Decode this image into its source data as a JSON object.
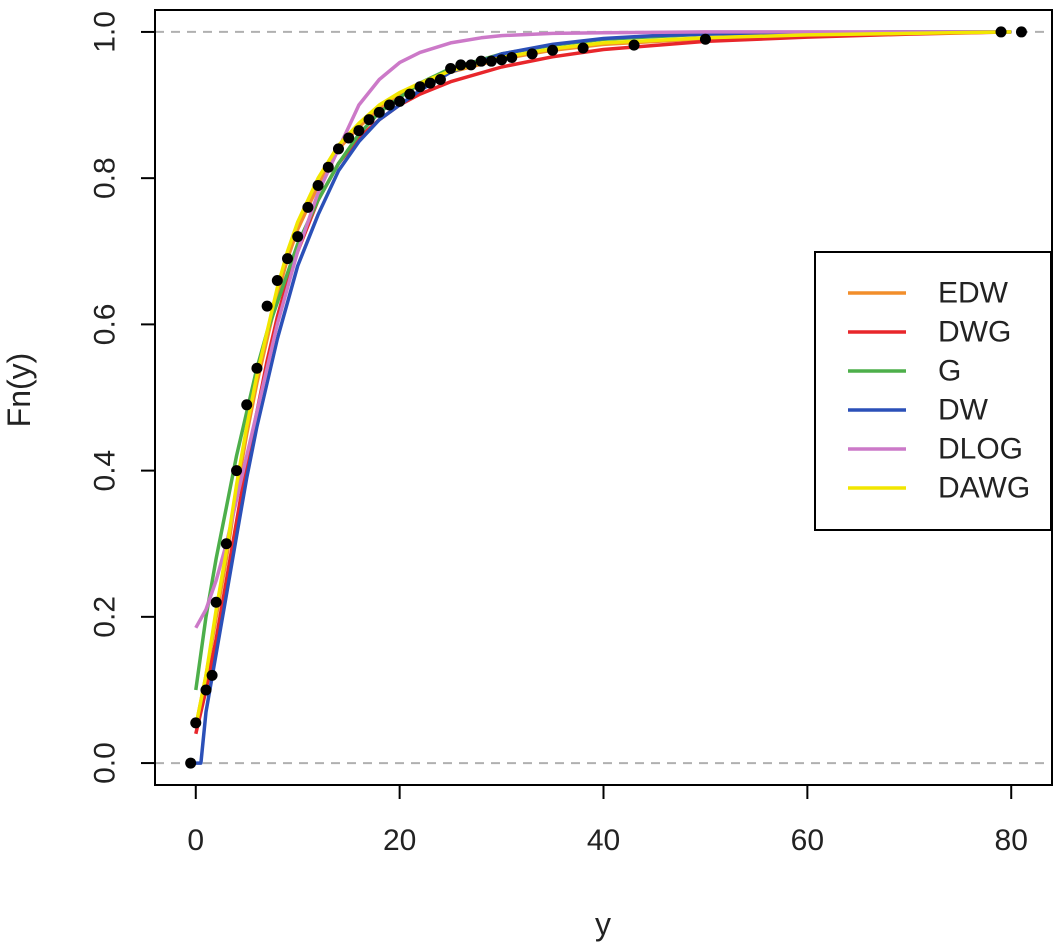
{
  "chart_data": {
    "type": "line",
    "title": "",
    "xlabel": "y",
    "ylabel": "Fn(y)",
    "xlim": [
      -4,
      84
    ],
    "ylim": [
      -0.03,
      1.03
    ],
    "x_ticks": [
      "0",
      "20",
      "40",
      "60",
      "80"
    ],
    "x_tick_values": [
      0,
      20,
      40,
      60,
      80
    ],
    "y_ticks": [
      "0.0",
      "0.2",
      "0.4",
      "0.6",
      "0.8",
      "1.0"
    ],
    "y_tick_values": [
      0,
      0.2,
      0.4,
      0.6,
      0.8,
      1.0
    ],
    "reference_lines": [
      0,
      1
    ],
    "legend_position": "right",
    "grid": false,
    "empirical_points": [
      [
        -0.5,
        0.0
      ],
      [
        0,
        0.055
      ],
      [
        1,
        0.1
      ],
      [
        1.6,
        0.12
      ],
      [
        2,
        0.22
      ],
      [
        3,
        0.3
      ],
      [
        4,
        0.4
      ],
      [
        5,
        0.49
      ],
      [
        6,
        0.54
      ],
      [
        7,
        0.625
      ],
      [
        8,
        0.66
      ],
      [
        9,
        0.69
      ],
      [
        10,
        0.72
      ],
      [
        11,
        0.76
      ],
      [
        12,
        0.79
      ],
      [
        13,
        0.815
      ],
      [
        14,
        0.84
      ],
      [
        15,
        0.855
      ],
      [
        16,
        0.865
      ],
      [
        17,
        0.88
      ],
      [
        18,
        0.89
      ],
      [
        19,
        0.9
      ],
      [
        20,
        0.905
      ],
      [
        21,
        0.915
      ],
      [
        22,
        0.925
      ],
      [
        23,
        0.93
      ],
      [
        24,
        0.935
      ],
      [
        25,
        0.95
      ],
      [
        26,
        0.955
      ],
      [
        27,
        0.955
      ],
      [
        28,
        0.96
      ],
      [
        29,
        0.96
      ],
      [
        30,
        0.962
      ],
      [
        31,
        0.965
      ],
      [
        33,
        0.97
      ],
      [
        35,
        0.975
      ],
      [
        38,
        0.978
      ],
      [
        43,
        0.982
      ],
      [
        50,
        0.99
      ],
      [
        79,
        1.0
      ],
      [
        81,
        1.0
      ]
    ],
    "series": [
      {
        "name": "EDW",
        "color": "#f28e2b",
        "x": [
          0,
          1,
          2,
          3,
          4,
          5,
          6,
          7,
          8,
          9,
          10,
          12,
          14,
          16,
          18,
          20,
          22,
          25,
          30,
          35,
          40,
          50,
          60,
          70,
          80
        ],
        "y": [
          0.05,
          0.12,
          0.2,
          0.28,
          0.37,
          0.45,
          0.52,
          0.58,
          0.64,
          0.69,
          0.73,
          0.79,
          0.84,
          0.87,
          0.895,
          0.913,
          0.928,
          0.945,
          0.963,
          0.975,
          0.983,
          0.991,
          0.996,
          0.998,
          1.0
        ]
      },
      {
        "name": "DWG",
        "color": "#e8262b",
        "x": [
          0,
          1,
          2,
          3,
          4,
          5,
          6,
          7,
          8,
          9,
          10,
          12,
          14,
          16,
          18,
          20,
          22,
          25,
          30,
          35,
          40,
          50,
          60,
          70,
          80
        ],
        "y": [
          0.04,
          0.1,
          0.17,
          0.25,
          0.33,
          0.41,
          0.48,
          0.55,
          0.61,
          0.66,
          0.7,
          0.77,
          0.82,
          0.855,
          0.88,
          0.9,
          0.915,
          0.932,
          0.952,
          0.966,
          0.976,
          0.987,
          0.993,
          0.997,
          1.0
        ]
      },
      {
        "name": "G",
        "color": "#4daf4a",
        "x": [
          0,
          1,
          2,
          3,
          4,
          5,
          6,
          7,
          8,
          9,
          10,
          12,
          14,
          16,
          18,
          20,
          22,
          25,
          30,
          35,
          40,
          50,
          60,
          70,
          80
        ],
        "y": [
          0.1,
          0.2,
          0.28,
          0.35,
          0.42,
          0.48,
          0.54,
          0.59,
          0.63,
          0.67,
          0.71,
          0.77,
          0.82,
          0.86,
          0.89,
          0.91,
          0.93,
          0.95,
          0.97,
          0.982,
          0.99,
          0.997,
          0.999,
          1.0,
          1.0
        ]
      },
      {
        "name": "DW",
        "color": "#2b50b8",
        "x": [
          0,
          0.5,
          1,
          2,
          3,
          4,
          5,
          6,
          7,
          8,
          9,
          10,
          12,
          14,
          16,
          18,
          20,
          22,
          25,
          30,
          35,
          40,
          45,
          50,
          60,
          70,
          80
        ],
        "y": [
          0.0,
          0.0,
          0.07,
          0.15,
          0.23,
          0.31,
          0.39,
          0.46,
          0.52,
          0.58,
          0.63,
          0.68,
          0.75,
          0.81,
          0.85,
          0.88,
          0.9,
          0.92,
          0.945,
          0.97,
          0.983,
          0.991,
          0.995,
          0.997,
          0.999,
          1.0,
          1.0
        ]
      },
      {
        "name": "DLOG",
        "color": "#cc79c8",
        "x": [
          0,
          1,
          2,
          3,
          4,
          5,
          6,
          7,
          8,
          9,
          10,
          12,
          14,
          16,
          18,
          20,
          22,
          25,
          28,
          30,
          35,
          40,
          50,
          60,
          70,
          80
        ],
        "y": [
          0.185,
          0.21,
          0.25,
          0.3,
          0.36,
          0.42,
          0.48,
          0.54,
          0.6,
          0.65,
          0.7,
          0.78,
          0.84,
          0.9,
          0.935,
          0.958,
          0.972,
          0.985,
          0.992,
          0.995,
          0.998,
          0.999,
          1.0,
          1.0,
          1.0,
          1.0
        ]
      },
      {
        "name": "DAWG",
        "color": "#f2e600",
        "x": [
          0,
          1,
          2,
          3,
          4,
          5,
          6,
          7,
          8,
          9,
          10,
          12,
          14,
          16,
          18,
          20,
          22,
          25,
          30,
          35,
          40,
          50,
          60,
          70,
          80
        ],
        "y": [
          0.05,
          0.12,
          0.21,
          0.29,
          0.38,
          0.46,
          0.53,
          0.59,
          0.65,
          0.7,
          0.74,
          0.8,
          0.845,
          0.875,
          0.9,
          0.917,
          0.93,
          0.947,
          0.965,
          0.977,
          0.985,
          0.992,
          0.996,
          0.998,
          1.0
        ]
      }
    ]
  }
}
